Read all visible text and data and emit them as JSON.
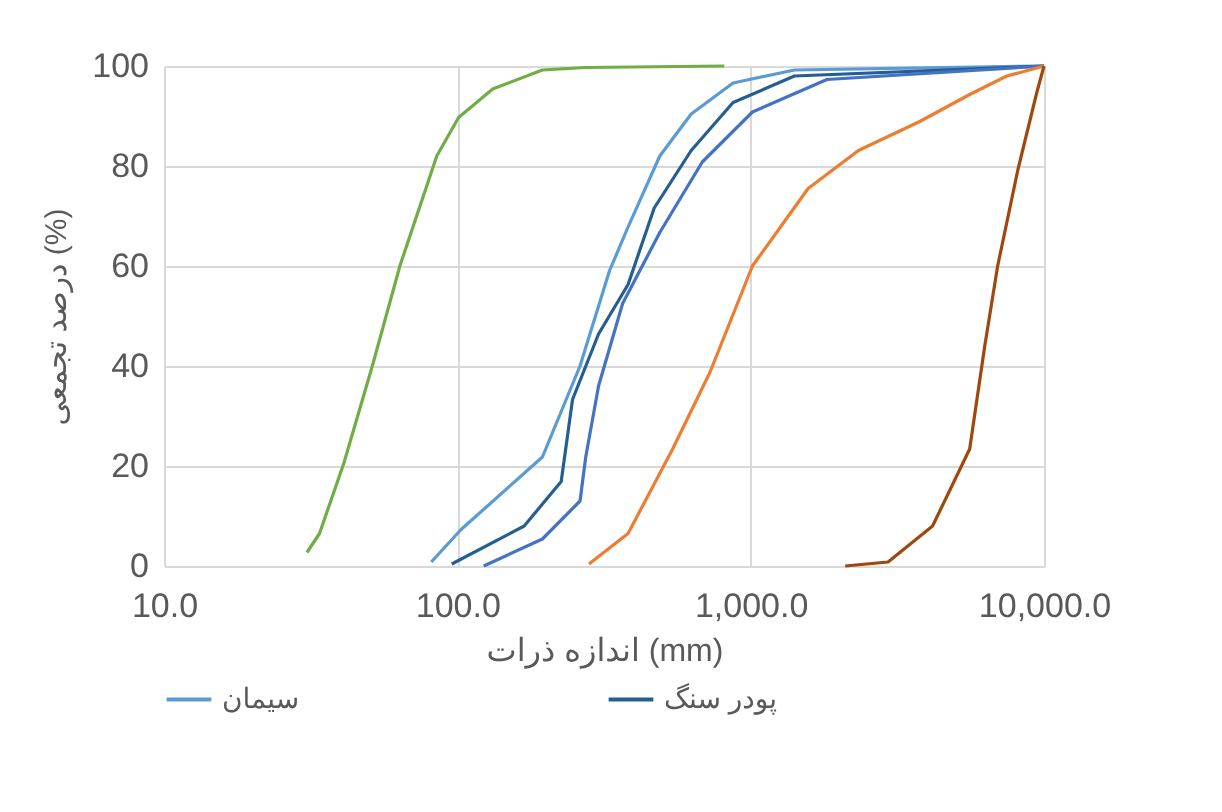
{
  "chart_data": {
    "type": "line",
    "xlabel": "اندازه ذرات (mm)",
    "ylabel": "درصد تجمعی (%)",
    "log": "x",
    "grid": true,
    "legend": "bottom",
    "marker": "none",
    "line_style": "solid",
    "xlim": [
      10,
      10000
    ],
    "xticks": [
      {
        "value": 10,
        "label": "10.0"
      },
      {
        "value": 100,
        "label": "100.0"
      },
      {
        "value": 1000,
        "label": "1,000.0"
      },
      {
        "value": 10000,
        "label": "10,000.0"
      }
    ],
    "ylim": [
      0,
      100
    ],
    "yticks": [
      0,
      20,
      40,
      60,
      80,
      100
    ],
    "series": [
      {
        "color": "#70ad47",
        "x": [
          30.7,
          33.9,
          41.1,
          51.2,
          63.7,
          85.1,
          101,
          132,
          195,
          274,
          813
        ],
        "values": [
          2.7,
          6.5,
          20.7,
          39.8,
          60,
          82,
          89.7,
          95.4,
          99.2,
          99.7,
          100
        ]
      },
      {
        "name": "سیمان",
        "color": "#5b9bd5",
        "x": [
          81.5,
          103,
          195,
          262,
          274,
          330,
          382,
          490,
          627,
          871,
          1410,
          10000
        ],
        "values": [
          0.8,
          7.3,
          21.8,
          40,
          43.7,
          59,
          67.8,
          82,
          90.4,
          96.6,
          99.2,
          100
        ]
      },
      {
        "name": "پودر سنگ",
        "color": "#255e91",
        "x": [
          95.7,
          169,
          226,
          247,
          303,
          382,
          469,
          627,
          871,
          1410,
          10000
        ],
        "values": [
          0.4,
          8,
          16.9,
          33.3,
          46.4,
          56.3,
          71.6,
          83.1,
          92.7,
          98,
          100
        ]
      },
      {
        "color": "#4472c4",
        "x": [
          123,
          195,
          262,
          274,
          303,
          366,
          490,
          684,
          1014,
          1820,
          10000
        ],
        "values": [
          0,
          5.4,
          13,
          21.8,
          36,
          52.5,
          66.7,
          80.8,
          90.8,
          97.3,
          100
        ]
      },
      {
        "color": "#ed7d31",
        "x": [
          281,
          382,
          542,
          726,
          1014,
          1570,
          2330,
          3770,
          5580,
          7470,
          10000
        ],
        "values": [
          0.4,
          6.5,
          23.4,
          38.7,
          60,
          75.5,
          83.1,
          88.9,
          94.3,
          98,
          100
        ]
      },
      {
        "color": "#9e480e",
        "x": [
          2100,
          2940,
          4170,
          5580,
          6270,
          6950,
          8150,
          9440,
          10000
        ],
        "values": [
          0,
          0.8,
          8,
          23.4,
          43.7,
          60,
          79.3,
          94.6,
          100
        ]
      }
    ]
  }
}
